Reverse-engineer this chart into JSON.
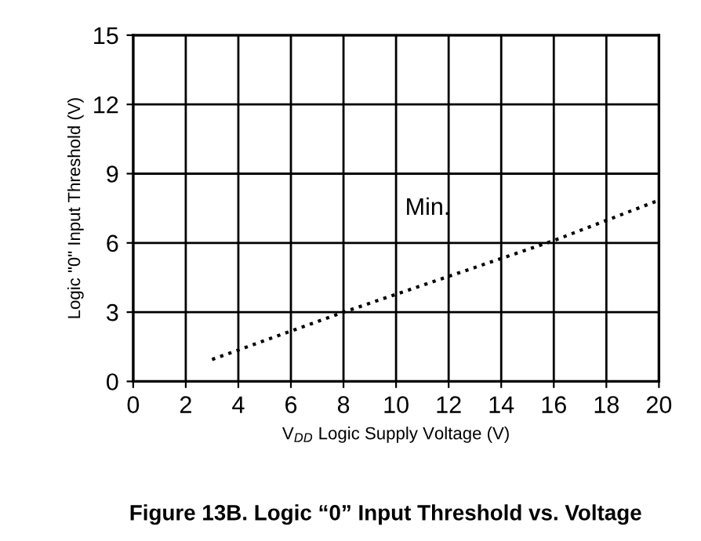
{
  "chart_data": {
    "type": "line",
    "title": "Figure 13B. Logic “0” Input Threshold vs. Voltage",
    "xlabel": "V$_{DD}$ Logic Supply Voltage (V)",
    "ylabel": "Logic \"0\" Input Threshold (V)",
    "series": [
      {
        "name": "Min.",
        "color": "#000000",
        "x": [
          3,
          8,
          16,
          20
        ],
        "values": [
          0.95,
          3.0,
          6.1,
          7.85
        ]
      }
    ],
    "xlim": [
      0,
      20
    ],
    "xticks": [
      0,
      2,
      4,
      6,
      8,
      10,
      12,
      14,
      16,
      18,
      20
    ],
    "ylim": [
      0,
      15
    ],
    "yticks": [
      0,
      3,
      6,
      9,
      12,
      15
    ],
    "grid": true,
    "marker": "none",
    "line_style": "dotted",
    "legend": false
  }
}
